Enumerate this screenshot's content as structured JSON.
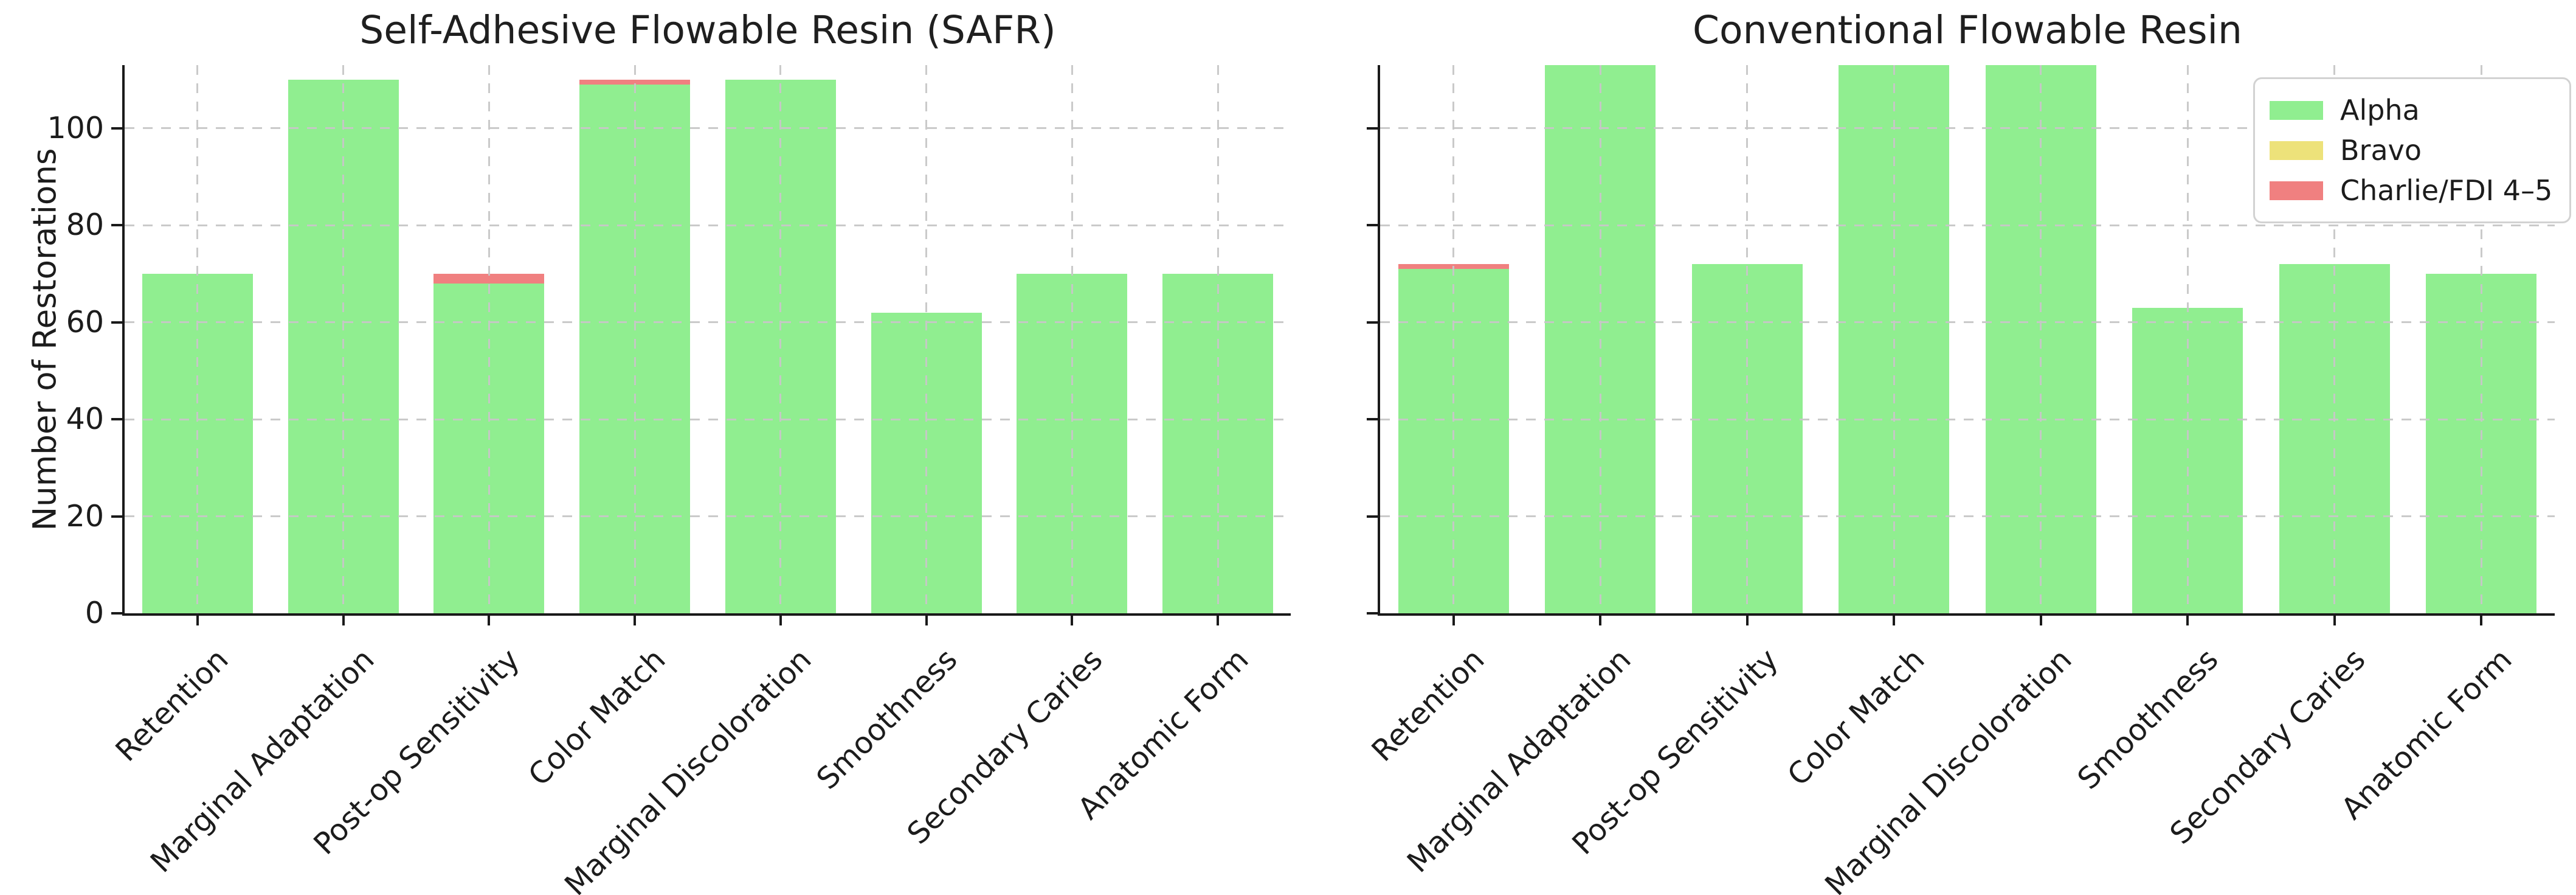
{
  "figure": {
    "background": "#ffffff",
    "text_color": "#1c1c1c",
    "grid_color": "#c7c7c7"
  },
  "chart_data": [
    {
      "type": "bar",
      "stacked": true,
      "title": "Self-Adhesive Flowable Resin (SAFR)",
      "ylabel": "Number of Restorations",
      "categories": [
        "Retention",
        "Marginal Adaptation",
        "Post-op Sensitivity",
        "Color Match",
        "Marginal Discoloration",
        "Smoothness",
        "Secondary Caries",
        "Anatomic Form"
      ],
      "series": [
        {
          "name": "Alpha",
          "color": "#90EE90",
          "values": [
            70,
            110,
            68,
            109,
            110,
            62,
            70,
            70
          ]
        },
        {
          "name": "Bravo",
          "color": "#EDE27A",
          "values": [
            0,
            0,
            0,
            0,
            0,
            0,
            0,
            0
          ]
        },
        {
          "name": "Charlie/FDI 4–5",
          "color": "#F08080",
          "values": [
            0,
            0,
            2,
            1,
            0,
            0,
            0,
            0
          ]
        }
      ],
      "yticks": [
        0,
        20,
        40,
        60,
        80,
        100
      ],
      "ylim": [
        0,
        113
      ],
      "grid": "dashed-over-bars",
      "legend": false
    },
    {
      "type": "bar",
      "stacked": true,
      "title": "Conventional Flowable Resin",
      "ylabel": "",
      "categories": [
        "Retention",
        "Marginal Adaptation",
        "Post-op Sensitivity",
        "Color Match",
        "Marginal Discoloration",
        "Smoothness",
        "Secondary Caries",
        "Anatomic Form"
      ],
      "series": [
        {
          "name": "Alpha",
          "color": "#90EE90",
          "values": [
            71,
            113,
            72,
            113,
            113,
            63,
            72,
            70
          ]
        },
        {
          "name": "Bravo",
          "color": "#EDE27A",
          "values": [
            0,
            0,
            0,
            0,
            0,
            0,
            0,
            0
          ]
        },
        {
          "name": "Charlie/FDI 4–5",
          "color": "#F08080",
          "values": [
            1,
            0,
            0,
            0,
            0,
            0,
            0,
            0
          ]
        }
      ],
      "yticks": [
        0,
        20,
        40,
        60,
        80,
        100
      ],
      "ylim": [
        0,
        113
      ],
      "grid": "dashed-over-bars",
      "legend": true,
      "legend_position": "upper-right"
    }
  ]
}
